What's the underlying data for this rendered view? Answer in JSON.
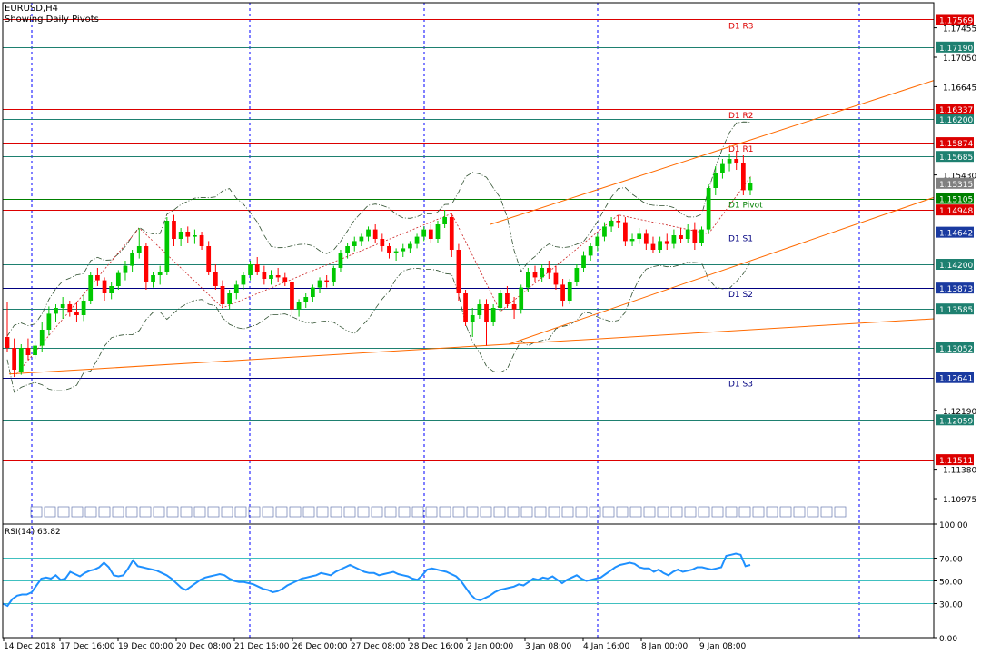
{
  "header": {
    "symbol": "EURUSD,H4",
    "indicator": "Showing Daily Pivots"
  },
  "colors": {
    "background": "#ffffff",
    "frame": "#000000",
    "bull_candle": "#00c800",
    "bear_candle": "#ff0000",
    "resistance_line": "#dc0000",
    "pivot_line": "#008000",
    "support_line": "#000080",
    "level_teal": "#1e8070",
    "trend_line": "#ff6a00",
    "rsi_line": "#1e90ff",
    "rsi_level": "#40c0c0",
    "vgrid": "#0000ff"
  },
  "chart_data": [
    {
      "type": "candlestick",
      "symbol": "EURUSD",
      "timeframe": "H4",
      "ylim": [
        1.1065,
        1.178
      ],
      "price_ticks": [
        {
          "label": "1.17455",
          "value": 1.17455
        },
        {
          "label": "1.17050",
          "value": 1.1705
        },
        {
          "label": "1.16645",
          "value": 1.16645
        },
        {
          "label": "1.15430",
          "value": 1.1543
        },
        {
          "label": "1.12190",
          "value": 1.1219
        },
        {
          "label": "1.11380",
          "value": 1.1138
        },
        {
          "label": "1.10975",
          "value": 1.10975
        }
      ],
      "pivot_levels": [
        {
          "name": "D1 R3",
          "label": "1.17569",
          "value": 1.17569,
          "kind": "resistance"
        },
        {
          "name": "D1 R2",
          "label": "1.16337",
          "value": 1.16337,
          "kind": "resistance"
        },
        {
          "name": "D1 R1",
          "label": "1.15874",
          "value": 1.15874,
          "kind": "resistance"
        },
        {
          "name": "D1 Pivot",
          "label": "1.15105",
          "value": 1.15105,
          "kind": "pivot"
        },
        {
          "name": "D1 S1",
          "label": "1.14642",
          "value": 1.14642,
          "kind": "support"
        },
        {
          "name": "D1 S2",
          "label": "1.13873",
          "value": 1.13873,
          "kind": "support"
        },
        {
          "name": "D1 S3",
          "label": "1.12641",
          "value": 1.12641,
          "kind": "support"
        }
      ],
      "other_levels": [
        {
          "label": "1.17190",
          "value": 1.1719,
          "kind": "teal"
        },
        {
          "label": "1.16200",
          "value": 1.162,
          "kind": "teal"
        },
        {
          "label": "1.15685",
          "value": 1.15685,
          "kind": "teal"
        },
        {
          "label": "1.14948",
          "value": 1.14948,
          "kind": "red"
        },
        {
          "label": "1.14200",
          "value": 1.142,
          "kind": "teal"
        },
        {
          "label": "1.13585",
          "value": 1.13585,
          "kind": "teal"
        },
        {
          "label": "1.13052",
          "value": 1.13052,
          "kind": "teal"
        },
        {
          "label": "1.12059",
          "value": 1.12059,
          "kind": "teal"
        },
        {
          "label": "1.11511",
          "value": 1.11511,
          "kind": "red"
        }
      ],
      "current_price": {
        "label": "1.15315",
        "value": 1.15315
      },
      "date_labels": [
        "14 Dec 2018",
        "17 Dec 16:00",
        "19 Dec 00:00",
        "20 Dec 08:00",
        "21 Dec 16:00",
        "26 Dec 00:00",
        "27 Dec 08:00",
        "28 Dec 16:00",
        "2 Jan 00:00",
        "3 Jan 08:00",
        "4 Jan 16:00",
        "8 Jan 00:00",
        "9 Jan 08:00"
      ],
      "candles": [
        {
          "o": 1.132,
          "h": 1.1368,
          "l": 1.13,
          "c": 1.1305
        },
        {
          "o": 1.1305,
          "h": 1.1318,
          "l": 1.1265,
          "c": 1.1275
        },
        {
          "o": 1.1272,
          "h": 1.131,
          "l": 1.1268,
          "c": 1.1305
        },
        {
          "o": 1.1305,
          "h": 1.1318,
          "l": 1.1288,
          "c": 1.1295
        },
        {
          "o": 1.1295,
          "h": 1.1315,
          "l": 1.129,
          "c": 1.1308
        },
        {
          "o": 1.1308,
          "h": 1.134,
          "l": 1.13,
          "c": 1.133
        },
        {
          "o": 1.133,
          "h": 1.1362,
          "l": 1.1322,
          "c": 1.1352
        },
        {
          "o": 1.1352,
          "h": 1.1365,
          "l": 1.134,
          "c": 1.136
        },
        {
          "o": 1.136,
          "h": 1.1375,
          "l": 1.1345,
          "c": 1.1365
        },
        {
          "o": 1.1365,
          "h": 1.137,
          "l": 1.1348,
          "c": 1.1355
        },
        {
          "o": 1.1355,
          "h": 1.1368,
          "l": 1.134,
          "c": 1.135
        },
        {
          "o": 1.135,
          "h": 1.1378,
          "l": 1.1342,
          "c": 1.137
        },
        {
          "o": 1.137,
          "h": 1.141,
          "l": 1.1365,
          "c": 1.1405
        },
        {
          "o": 1.1405,
          "h": 1.1415,
          "l": 1.139,
          "c": 1.1398
        },
        {
          "o": 1.1398,
          "h": 1.1402,
          "l": 1.137,
          "c": 1.138
        },
        {
          "o": 1.138,
          "h": 1.1395,
          "l": 1.1372,
          "c": 1.139
        },
        {
          "o": 1.139,
          "h": 1.1412,
          "l": 1.1385,
          "c": 1.1408
        },
        {
          "o": 1.1408,
          "h": 1.1425,
          "l": 1.1398,
          "c": 1.1418
        },
        {
          "o": 1.1418,
          "h": 1.144,
          "l": 1.141,
          "c": 1.1435
        },
        {
          "o": 1.1435,
          "h": 1.147,
          "l": 1.1428,
          "c": 1.1445
        },
        {
          "o": 1.1445,
          "h": 1.145,
          "l": 1.1385,
          "c": 1.1395
        },
        {
          "o": 1.1395,
          "h": 1.141,
          "l": 1.1388,
          "c": 1.1405
        },
        {
          "o": 1.1405,
          "h": 1.1418,
          "l": 1.1392,
          "c": 1.141
        },
        {
          "o": 1.141,
          "h": 1.1485,
          "l": 1.1405,
          "c": 1.148
        },
        {
          "o": 1.148,
          "h": 1.1488,
          "l": 1.1445,
          "c": 1.1455
        },
        {
          "o": 1.1455,
          "h": 1.147,
          "l": 1.1445,
          "c": 1.1465
        },
        {
          "o": 1.1465,
          "h": 1.1472,
          "l": 1.145,
          "c": 1.1458
        },
        {
          "o": 1.1458,
          "h": 1.1468,
          "l": 1.1448,
          "c": 1.146
        },
        {
          "o": 1.146,
          "h": 1.1465,
          "l": 1.144,
          "c": 1.1445
        },
        {
          "o": 1.1445,
          "h": 1.1452,
          "l": 1.1405,
          "c": 1.141
        },
        {
          "o": 1.141,
          "h": 1.142,
          "l": 1.1385,
          "c": 1.139
        },
        {
          "o": 1.139,
          "h": 1.1398,
          "l": 1.136,
          "c": 1.1365
        },
        {
          "o": 1.1365,
          "h": 1.1385,
          "l": 1.1358,
          "c": 1.138
        },
        {
          "o": 1.138,
          "h": 1.1398,
          "l": 1.1372,
          "c": 1.1392
        },
        {
          "o": 1.1392,
          "h": 1.141,
          "l": 1.1385,
          "c": 1.1405
        },
        {
          "o": 1.1405,
          "h": 1.1425,
          "l": 1.1398,
          "c": 1.142
        },
        {
          "o": 1.142,
          "h": 1.143,
          "l": 1.1405,
          "c": 1.141
        },
        {
          "o": 1.141,
          "h": 1.1418,
          "l": 1.1392,
          "c": 1.14
        },
        {
          "o": 1.14,
          "h": 1.1412,
          "l": 1.1392,
          "c": 1.1405
        },
        {
          "o": 1.1405,
          "h": 1.1415,
          "l": 1.1395,
          "c": 1.1402
        },
        {
          "o": 1.1402,
          "h": 1.1408,
          "l": 1.139,
          "c": 1.1395
        },
        {
          "o": 1.1395,
          "h": 1.14,
          "l": 1.135,
          "c": 1.1358
        },
        {
          "o": 1.1358,
          "h": 1.1372,
          "l": 1.1348,
          "c": 1.1368
        },
        {
          "o": 1.1368,
          "h": 1.138,
          "l": 1.136,
          "c": 1.1375
        },
        {
          "o": 1.1375,
          "h": 1.1392,
          "l": 1.1368,
          "c": 1.1388
        },
        {
          "o": 1.1388,
          "h": 1.1402,
          "l": 1.138,
          "c": 1.1398
        },
        {
          "o": 1.1398,
          "h": 1.1405,
          "l": 1.1388,
          "c": 1.1395
        },
        {
          "o": 1.1395,
          "h": 1.1418,
          "l": 1.139,
          "c": 1.1415
        },
        {
          "o": 1.1415,
          "h": 1.144,
          "l": 1.141,
          "c": 1.1435
        },
        {
          "o": 1.1435,
          "h": 1.145,
          "l": 1.1428,
          "c": 1.1445
        },
        {
          "o": 1.1445,
          "h": 1.1458,
          "l": 1.1438,
          "c": 1.1452
        },
        {
          "o": 1.1452,
          "h": 1.1462,
          "l": 1.1445,
          "c": 1.1458
        },
        {
          "o": 1.1458,
          "h": 1.1472,
          "l": 1.1452,
          "c": 1.1468
        },
        {
          "o": 1.1468,
          "h": 1.1475,
          "l": 1.145,
          "c": 1.1455
        },
        {
          "o": 1.1455,
          "h": 1.1462,
          "l": 1.1438,
          "c": 1.1445
        },
        {
          "o": 1.1445,
          "h": 1.145,
          "l": 1.1428,
          "c": 1.1435
        },
        {
          "o": 1.1435,
          "h": 1.1442,
          "l": 1.1425,
          "c": 1.1438
        },
        {
          "o": 1.1438,
          "h": 1.1448,
          "l": 1.143,
          "c": 1.1442
        },
        {
          "o": 1.1442,
          "h": 1.1452,
          "l": 1.1435,
          "c": 1.1448
        },
        {
          "o": 1.1448,
          "h": 1.1462,
          "l": 1.1442,
          "c": 1.1458
        },
        {
          "o": 1.1458,
          "h": 1.1472,
          "l": 1.1452,
          "c": 1.1468
        },
        {
          "o": 1.1468,
          "h": 1.1475,
          "l": 1.145,
          "c": 1.1455
        },
        {
          "o": 1.1455,
          "h": 1.148,
          "l": 1.145,
          "c": 1.1475
        },
        {
          "o": 1.1475,
          "h": 1.1495,
          "l": 1.147,
          "c": 1.1485
        },
        {
          "o": 1.1485,
          "h": 1.149,
          "l": 1.143,
          "c": 1.144
        },
        {
          "o": 1.144,
          "h": 1.1448,
          "l": 1.137,
          "c": 1.138
        },
        {
          "o": 1.138,
          "h": 1.1385,
          "l": 1.1335,
          "c": 1.134
        },
        {
          "o": 1.134,
          "h": 1.136,
          "l": 1.132,
          "c": 1.135
        },
        {
          "o": 1.135,
          "h": 1.1372,
          "l": 1.1345,
          "c": 1.1365
        },
        {
          "o": 1.1365,
          "h": 1.1372,
          "l": 1.1308,
          "c": 1.134
        },
        {
          "o": 1.134,
          "h": 1.1365,
          "l": 1.1335,
          "c": 1.136
        },
        {
          "o": 1.136,
          "h": 1.1385,
          "l": 1.1355,
          "c": 1.138
        },
        {
          "o": 1.138,
          "h": 1.139,
          "l": 1.136,
          "c": 1.1365
        },
        {
          "o": 1.1365,
          "h": 1.1375,
          "l": 1.1345,
          "c": 1.1358
        },
        {
          "o": 1.1358,
          "h": 1.1392,
          "l": 1.1352,
          "c": 1.1388
        },
        {
          "o": 1.1388,
          "h": 1.1415,
          "l": 1.1382,
          "c": 1.141
        },
        {
          "o": 1.141,
          "h": 1.1418,
          "l": 1.1395,
          "c": 1.1402
        },
        {
          "o": 1.1402,
          "h": 1.142,
          "l": 1.1395,
          "c": 1.1415
        },
        {
          "o": 1.1415,
          "h": 1.1425,
          "l": 1.14,
          "c": 1.1408
        },
        {
          "o": 1.1408,
          "h": 1.1418,
          "l": 1.1385,
          "c": 1.1392
        },
        {
          "o": 1.1392,
          "h": 1.14,
          "l": 1.1362,
          "c": 1.137
        },
        {
          "o": 1.137,
          "h": 1.14,
          "l": 1.1365,
          "c": 1.1395
        },
        {
          "o": 1.1395,
          "h": 1.142,
          "l": 1.139,
          "c": 1.1415
        },
        {
          "o": 1.1415,
          "h": 1.1438,
          "l": 1.141,
          "c": 1.1432
        },
        {
          "o": 1.1432,
          "h": 1.145,
          "l": 1.1425,
          "c": 1.1445
        },
        {
          "o": 1.1445,
          "h": 1.1462,
          "l": 1.1438,
          "c": 1.1458
        },
        {
          "o": 1.1458,
          "h": 1.1478,
          "l": 1.1452,
          "c": 1.1472
        },
        {
          "o": 1.1472,
          "h": 1.1485,
          "l": 1.1465,
          "c": 1.148
        },
        {
          "o": 1.148,
          "h": 1.1488,
          "l": 1.147,
          "c": 1.1478
        },
        {
          "o": 1.1478,
          "h": 1.1485,
          "l": 1.1445,
          "c": 1.1452
        },
        {
          "o": 1.1452,
          "h": 1.1462,
          "l": 1.1445,
          "c": 1.1455
        },
        {
          "o": 1.1455,
          "h": 1.147,
          "l": 1.1448,
          "c": 1.1462
        },
        {
          "o": 1.1462,
          "h": 1.1468,
          "l": 1.144,
          "c": 1.1448
        },
        {
          "o": 1.1448,
          "h": 1.1458,
          "l": 1.1435,
          "c": 1.144
        },
        {
          "o": 1.144,
          "h": 1.1458,
          "l": 1.1435,
          "c": 1.1452
        },
        {
          "o": 1.1452,
          "h": 1.1462,
          "l": 1.144,
          "c": 1.1448
        },
        {
          "o": 1.1448,
          "h": 1.1468,
          "l": 1.1442,
          "c": 1.146
        },
        {
          "o": 1.146,
          "h": 1.147,
          "l": 1.145,
          "c": 1.1455
        },
        {
          "o": 1.1455,
          "h": 1.1475,
          "l": 1.145,
          "c": 1.1468
        },
        {
          "o": 1.1468,
          "h": 1.1478,
          "l": 1.144,
          "c": 1.145
        },
        {
          "o": 1.145,
          "h": 1.1472,
          "l": 1.1445,
          "c": 1.1468
        },
        {
          "o": 1.1468,
          "h": 1.153,
          "l": 1.1462,
          "c": 1.1525
        },
        {
          "o": 1.1525,
          "h": 1.1555,
          "l": 1.1515,
          "c": 1.1545
        },
        {
          "o": 1.1545,
          "h": 1.1565,
          "l": 1.1538,
          "c": 1.1558
        },
        {
          "o": 1.1558,
          "h": 1.1572,
          "l": 1.1548,
          "c": 1.1565
        },
        {
          "o": 1.1565,
          "h": 1.1575,
          "l": 1.155,
          "c": 1.156
        },
        {
          "o": 1.156,
          "h": 1.157,
          "l": 1.1515,
          "c": 1.1522
        },
        {
          "o": 1.1522,
          "h": 1.154,
          "l": 1.1515,
          "c": 1.1532
        }
      ]
    },
    {
      "type": "line",
      "title": "RSI(14) 63.82",
      "ylim": [
        0,
        100
      ],
      "ticks": [
        {
          "label": "100.00",
          "value": 100
        },
        {
          "label": "70.00",
          "value": 70
        },
        {
          "label": "50.00",
          "value": 50
        },
        {
          "label": "30.00",
          "value": 30
        },
        {
          "label": "0.00",
          "value": 0
        }
      ],
      "levels": [
        70,
        50,
        30
      ],
      "values": [
        30,
        28,
        34,
        37,
        38,
        38,
        40,
        46,
        52,
        53,
        52,
        55,
        51,
        52,
        58,
        56,
        54,
        57,
        59,
        60,
        62,
        66,
        62,
        55,
        54,
        55,
        61,
        68,
        63,
        62,
        61,
        60,
        59,
        57,
        55,
        52,
        48,
        44,
        42,
        45,
        48,
        51,
        53,
        54,
        55,
        56,
        55,
        52,
        50,
        49,
        49,
        48,
        47,
        45,
        43,
        42,
        40,
        41,
        43,
        46,
        48,
        50,
        52,
        53,
        54,
        55,
        57,
        56,
        55,
        58,
        60,
        62,
        64,
        62,
        60,
        58,
        57,
        57,
        55,
        56,
        57,
        58,
        56,
        55,
        54,
        52,
        51,
        55,
        60,
        61,
        60,
        59,
        58,
        56,
        54,
        50,
        44,
        38,
        34,
        33,
        35,
        37,
        40,
        42,
        43,
        44,
        45,
        47,
        46,
        49,
        52,
        51,
        53,
        52,
        54,
        51,
        48,
        51,
        53,
        55,
        52,
        50,
        51,
        52,
        53,
        56,
        59,
        62,
        64,
        65,
        66,
        65,
        62,
        61,
        61,
        58,
        60,
        57,
        55,
        58,
        60,
        58,
        59,
        60,
        62,
        62,
        61,
        60,
        61,
        62,
        72,
        73,
        74,
        73,
        63,
        64
      ]
    }
  ]
}
